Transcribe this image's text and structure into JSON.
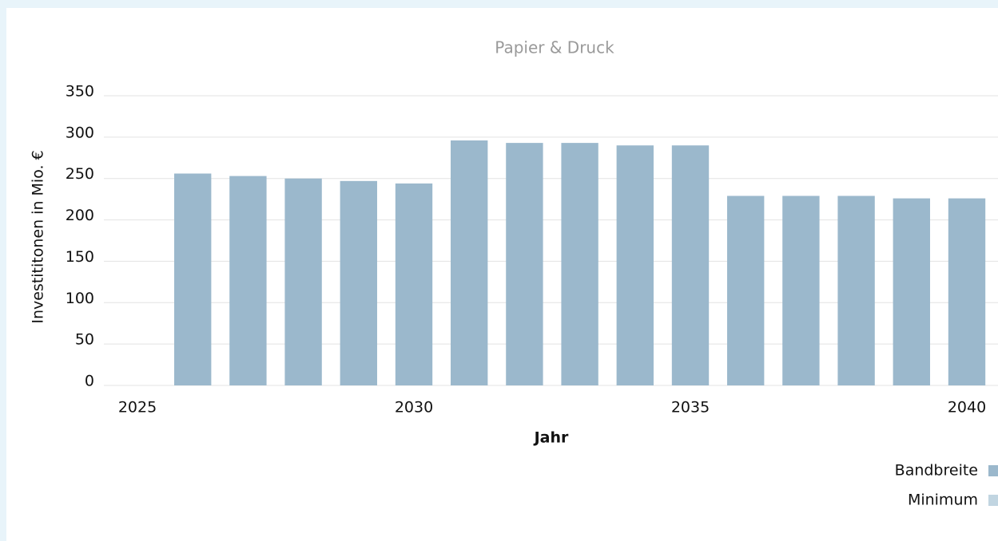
{
  "chart_data": {
    "type": "bar",
    "title": "Papier & Druck",
    "x_label": "Jahr",
    "y_label": "Investititonen in Mio. €",
    "x": [
      2026,
      2027,
      2028,
      2029,
      2030,
      2031,
      2032,
      2033,
      2034,
      2035,
      2036,
      2037,
      2038,
      2039,
      2040
    ],
    "series": [
      {
        "name": "Bandbreite",
        "color": "#9bb8cc",
        "values": [
          256,
          253,
          250,
          247,
          244,
          296,
          293,
          293,
          290,
          290,
          229,
          229,
          229,
          226,
          226
        ]
      },
      {
        "name": "Minimum",
        "color": "#c1d5e1",
        "values": [
          null,
          null,
          null,
          null,
          null,
          null,
          null,
          null,
          null,
          null,
          null,
          null,
          null,
          null,
          null
        ]
      }
    ],
    "xlim": [
      2025,
      2040
    ],
    "xticks": [
      2025,
      2030,
      2035,
      2040
    ],
    "ylim": [
      0,
      350
    ],
    "yticks": [
      0,
      50,
      100,
      150,
      200,
      250,
      300,
      350
    ],
    "grid": true,
    "legend": "bottom-right"
  }
}
